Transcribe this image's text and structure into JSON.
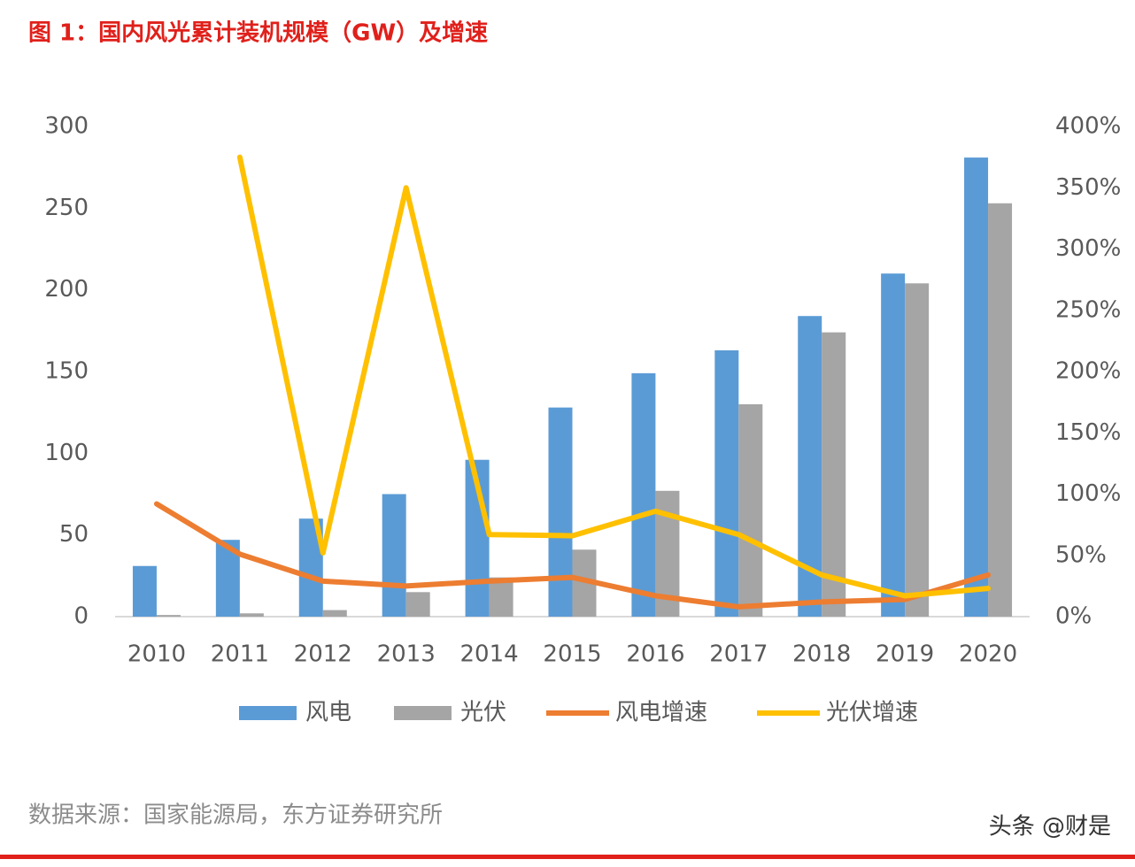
{
  "chart_data": {
    "type": "bar",
    "title": "图 1：国内风光累计装机规模（GW）及增速",
    "source": "数据来源：国家能源局，东方证券研究所",
    "watermark": "头条 @财是",
    "categories": [
      "2010",
      "2011",
      "2012",
      "2013",
      "2014",
      "2015",
      "2016",
      "2017",
      "2018",
      "2019",
      "2020"
    ],
    "series": [
      {
        "name": "风电",
        "type": "bar",
        "color": "#5b9bd5",
        "values": [
          31,
          47,
          60,
          75,
          96,
          128,
          149,
          163,
          184,
          210,
          281
        ]
      },
      {
        "name": "光伏",
        "type": "bar",
        "color": "#a5a5a5",
        "values": [
          1,
          2,
          4,
          15,
          24,
          41,
          77,
          130,
          174,
          204,
          253
        ]
      },
      {
        "name": "风电增速",
        "type": "line",
        "axis": "y2",
        "color": "#ed7d31",
        "values": [
          92,
          51,
          29,
          25,
          29,
          32,
          17,
          8,
          12,
          14,
          34
        ]
      },
      {
        "name": "光伏增速",
        "type": "line",
        "axis": "y2",
        "color": "#ffc000",
        "values": [
          null,
          375,
          52,
          350,
          67,
          66,
          86,
          67,
          34,
          17,
          23
        ]
      }
    ],
    "ylim": [
      0,
      300
    ],
    "yticks": [
      0,
      50,
      100,
      150,
      200,
      250,
      300
    ],
    "y2lim": [
      0,
      400
    ],
    "y2ticks": [
      {
        "value": 0,
        "label": "0%"
      },
      {
        "value": 50,
        "label": "50%"
      },
      {
        "value": 100,
        "label": "100%"
      },
      {
        "value": 150,
        "label": "150%"
      },
      {
        "value": 200,
        "label": "200%"
      },
      {
        "value": 250,
        "label": "250%"
      },
      {
        "value": 300,
        "label": "300%"
      },
      {
        "value": 350,
        "label": "350%"
      },
      {
        "value": 400,
        "label": "400%"
      }
    ],
    "grid": false,
    "legend": "bottom"
  }
}
